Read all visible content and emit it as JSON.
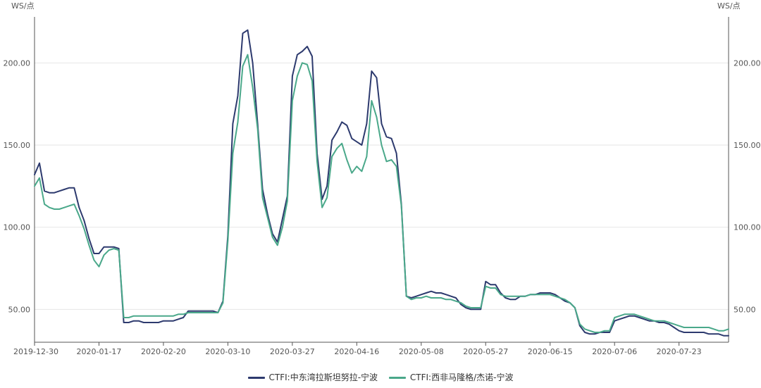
{
  "chart_data": {
    "type": "line",
    "y_unit_left": "WS/点",
    "y_unit_right": "WS/点",
    "ylim": [
      30,
      228
    ],
    "y_ticks": [
      50,
      100,
      150,
      200
    ],
    "y_tick_labels": [
      "50.00",
      "100.00",
      "150.00",
      "200.00"
    ],
    "grid": true,
    "legend_position": "bottom-center",
    "x_tick_labels": [
      "2019-12-30",
      "2020-01-17",
      "2020-02-20",
      "2020-03-10",
      "2020-03-27",
      "2020-04-16",
      "2020-05-08",
      "2020-05-27",
      "2020-06-15",
      "2020-07-06",
      "2020-07-23"
    ],
    "x_tick_index": [
      0,
      13,
      26,
      39,
      52,
      65,
      78,
      91,
      104,
      117,
      130
    ],
    "n_points": 141,
    "series": [
      {
        "name": "CTFI:中东湾拉斯坦努拉-宁波",
        "color": "#2d3a6e",
        "values": [
          132,
          139,
          122,
          121,
          121,
          122,
          123,
          124,
          124,
          112,
          104,
          93,
          84,
          84,
          88,
          88,
          88,
          87,
          42,
          42,
          43,
          43,
          42,
          42,
          42,
          42,
          43,
          43,
          43,
          44,
          45,
          49,
          49,
          49,
          49,
          49,
          49,
          48,
          55,
          95,
          163,
          180,
          218,
          220,
          200,
          163,
          123,
          108,
          96,
          91,
          105,
          119,
          192,
          205,
          207,
          210,
          204,
          145,
          117,
          125,
          153,
          158,
          164,
          162,
          154,
          152,
          150,
          163,
          195,
          191,
          163,
          155,
          154,
          145,
          114,
          58,
          57,
          58,
          59,
          60,
          61,
          60,
          60,
          59,
          58,
          57,
          53,
          51,
          50,
          50,
          50,
          67,
          65,
          65,
          60,
          57,
          56,
          56,
          58,
          58,
          59,
          59,
          60,
          60,
          60,
          59,
          57,
          55,
          54,
          51,
          40,
          36,
          35,
          35,
          36,
          36,
          36,
          43,
          44,
          45,
          46,
          46,
          45,
          44,
          43,
          43,
          42,
          42,
          41,
          39,
          37,
          36,
          36,
          36,
          36,
          36,
          35,
          35,
          35,
          34,
          34
        ]
      },
      {
        "name": "CTFI:西非马隆格/杰诺-宁波",
        "color": "#4aa88a",
        "values": [
          125,
          130,
          114,
          112,
          111,
          111,
          112,
          113,
          114,
          107,
          99,
          89,
          80,
          76,
          83,
          86,
          87,
          86,
          45,
          45,
          46,
          46,
          46,
          46,
          46,
          46,
          46,
          46,
          46,
          47,
          47,
          48,
          48,
          48,
          48,
          48,
          48,
          48,
          54,
          92,
          145,
          164,
          198,
          205,
          185,
          160,
          118,
          106,
          94,
          89,
          100,
          116,
          177,
          192,
          200,
          199,
          189,
          140,
          112,
          118,
          143,
          148,
          151,
          141,
          133,
          137,
          134,
          143,
          177,
          167,
          150,
          140,
          141,
          137,
          113,
          58,
          56,
          57,
          57,
          58,
          57,
          57,
          57,
          56,
          56,
          55,
          54,
          52,
          51,
          51,
          51,
          64,
          63,
          63,
          59,
          58,
          58,
          58,
          58,
          58,
          59,
          59,
          59,
          59,
          59,
          58,
          57,
          56,
          54,
          51,
          41,
          38,
          37,
          36,
          36,
          37,
          37,
          45,
          46,
          47,
          47,
          47,
          46,
          45,
          44,
          43,
          43,
          43,
          42,
          41,
          40,
          39,
          39,
          39,
          39,
          39,
          39,
          38,
          37,
          37,
          38
        ]
      }
    ]
  }
}
